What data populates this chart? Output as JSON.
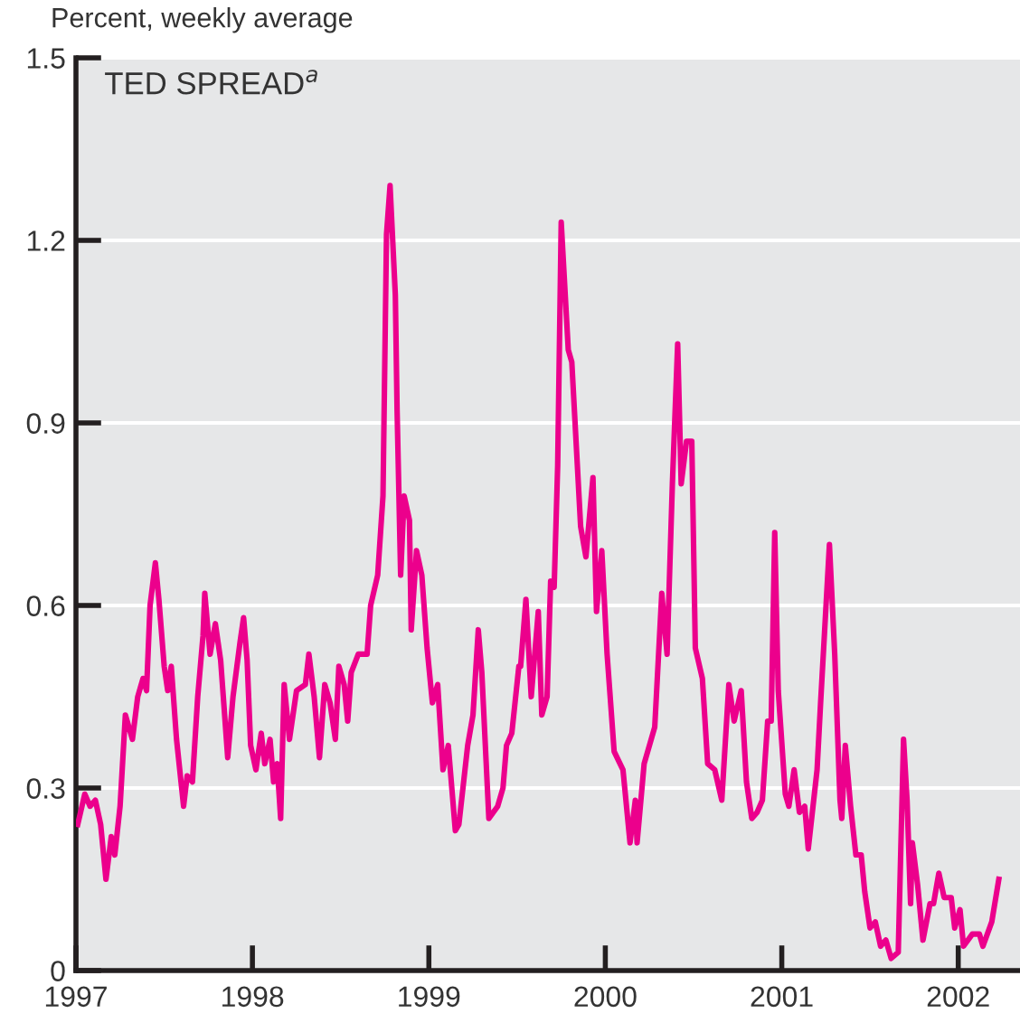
{
  "chart_data": {
    "type": "line",
    "title": "TED SPREAD$^{a}$",
    "ylabel": "Percent, weekly average",
    "x": [
      1997.01,
      1997.05,
      1997.08,
      1997.11,
      1997.14,
      1997.17,
      1997.2,
      1997.22,
      1997.25,
      1997.28,
      1997.32,
      1997.35,
      1997.38,
      1997.4,
      1997.42,
      1997.45,
      1997.47,
      1997.5,
      1997.52,
      1997.54,
      1997.57,
      1997.61,
      1997.63,
      1997.66,
      1997.69,
      1997.72,
      1997.73,
      1997.76,
      1997.79,
      1997.82,
      1997.86,
      1997.89,
      1997.93,
      1997.95,
      1997.97,
      1997.99,
      1998.02,
      1998.05,
      1998.07,
      1998.1,
      1998.12,
      1998.14,
      1998.16,
      1998.18,
      1998.21,
      1998.25,
      1998.3,
      1998.32,
      1998.35,
      1998.38,
      1998.41,
      1998.44,
      1998.47,
      1998.49,
      1998.52,
      1998.54,
      1998.56,
      1998.6,
      1998.65,
      1998.67,
      1998.71,
      1998.74,
      1998.76,
      1998.78,
      1998.81,
      1998.82,
      1998.84,
      1998.86,
      1998.89,
      1998.9,
      1998.93,
      1998.96,
      1998.99,
      1999.02,
      1999.05,
      1999.08,
      1999.11,
      1999.15,
      1999.17,
      1999.22,
      1999.25,
      1999.28,
      1999.3,
      1999.34,
      1999.39,
      1999.42,
      1999.44,
      1999.47,
      1999.51,
      1999.52,
      1999.55,
      1999.58,
      1999.62,
      1999.64,
      1999.67,
      1999.69,
      1999.71,
      1999.73,
      1999.75,
      1999.79,
      1999.81,
      1999.86,
      1999.89,
      1999.93,
      1999.95,
      1999.98,
      2000.01,
      2000.05,
      2000.1,
      2000.14,
      2000.17,
      2000.18,
      2000.22,
      2000.28,
      2000.32,
      2000.35,
      2000.38,
      2000.41,
      2000.43,
      2000.46,
      2000.49,
      2000.51,
      2000.55,
      2000.58,
      2000.62,
      2000.66,
      2000.7,
      2000.73,
      2000.77,
      2000.8,
      2000.83,
      2000.86,
      2000.89,
      2000.92,
      2000.94,
      2000.96,
      2000.98,
      2001.02,
      2001.04,
      2001.07,
      2001.1,
      2001.13,
      2001.15,
      2001.2,
      2001.22,
      2001.27,
      2001.3,
      2001.33,
      2001.34,
      2001.36,
      2001.39,
      2001.42,
      2001.45,
      2001.47,
      2001.5,
      2001.53,
      2001.56,
      2001.59,
      2001.62,
      2001.66,
      2001.69,
      2001.71,
      2001.73,
      2001.74,
      2001.77,
      2001.8,
      2001.84,
      2001.86,
      2001.89,
      2001.92,
      2001.96,
      2001.98,
      2002.01,
      2002.03,
      2002.08,
      2002.12,
      2002.14,
      2002.19,
      2002.23
    ],
    "series": [
      {
        "color": "#ec008c",
        "values": [
          0.24,
          0.29,
          0.27,
          0.28,
          0.24,
          0.15,
          0.22,
          0.19,
          0.27,
          0.42,
          0.38,
          0.45,
          0.48,
          0.46,
          0.6,
          0.67,
          0.61,
          0.5,
          0.46,
          0.5,
          0.38,
          0.27,
          0.32,
          0.31,
          0.45,
          0.55,
          0.62,
          0.52,
          0.57,
          0.51,
          0.35,
          0.45,
          0.54,
          0.58,
          0.51,
          0.37,
          0.33,
          0.39,
          0.34,
          0.38,
          0.31,
          0.34,
          0.25,
          0.47,
          0.38,
          0.46,
          0.47,
          0.52,
          0.45,
          0.35,
          0.47,
          0.44,
          0.38,
          0.5,
          0.47,
          0.41,
          0.49,
          0.52,
          0.52,
          0.6,
          0.65,
          0.78,
          1.21,
          1.29,
          1.11,
          0.92,
          0.65,
          0.78,
          0.74,
          0.56,
          0.69,
          0.65,
          0.53,
          0.44,
          0.47,
          0.33,
          0.37,
          0.23,
          0.24,
          0.37,
          0.42,
          0.56,
          0.49,
          0.25,
          0.27,
          0.3,
          0.37,
          0.39,
          0.5,
          0.5,
          0.61,
          0.45,
          0.59,
          0.42,
          0.45,
          0.64,
          0.63,
          0.83,
          1.23,
          1.02,
          1.0,
          0.73,
          0.68,
          0.81,
          0.59,
          0.69,
          0.52,
          0.36,
          0.33,
          0.21,
          0.28,
          0.21,
          0.34,
          0.4,
          0.62,
          0.52,
          0.8,
          1.03,
          0.8,
          0.87,
          0.87,
          0.53,
          0.48,
          0.34,
          0.33,
          0.28,
          0.47,
          0.41,
          0.46,
          0.31,
          0.25,
          0.26,
          0.28,
          0.41,
          0.41,
          0.72,
          0.46,
          0.29,
          0.27,
          0.33,
          0.26,
          0.27,
          0.2,
          0.33,
          0.44,
          0.7,
          0.52,
          0.28,
          0.25,
          0.37,
          0.27,
          0.19,
          0.19,
          0.13,
          0.07,
          0.08,
          0.04,
          0.05,
          0.02,
          0.03,
          0.38,
          0.28,
          0.11,
          0.21,
          0.14,
          0.05,
          0.11,
          0.11,
          0.16,
          0.12,
          0.12,
          0.07,
          0.1,
          0.04,
          0.06,
          0.06,
          0.04,
          0.08,
          0.15
        ]
      }
    ],
    "xlim": [
      1997,
      2002.35
    ],
    "xticks": [
      1997,
      1998,
      1999,
      2000,
      2001,
      2002
    ],
    "ylim": [
      0,
      1.5
    ],
    "yticks": [
      0,
      0.3,
      0.6,
      0.9,
      1.2,
      1.5
    ],
    "grid": "y",
    "line_style": "solid"
  }
}
